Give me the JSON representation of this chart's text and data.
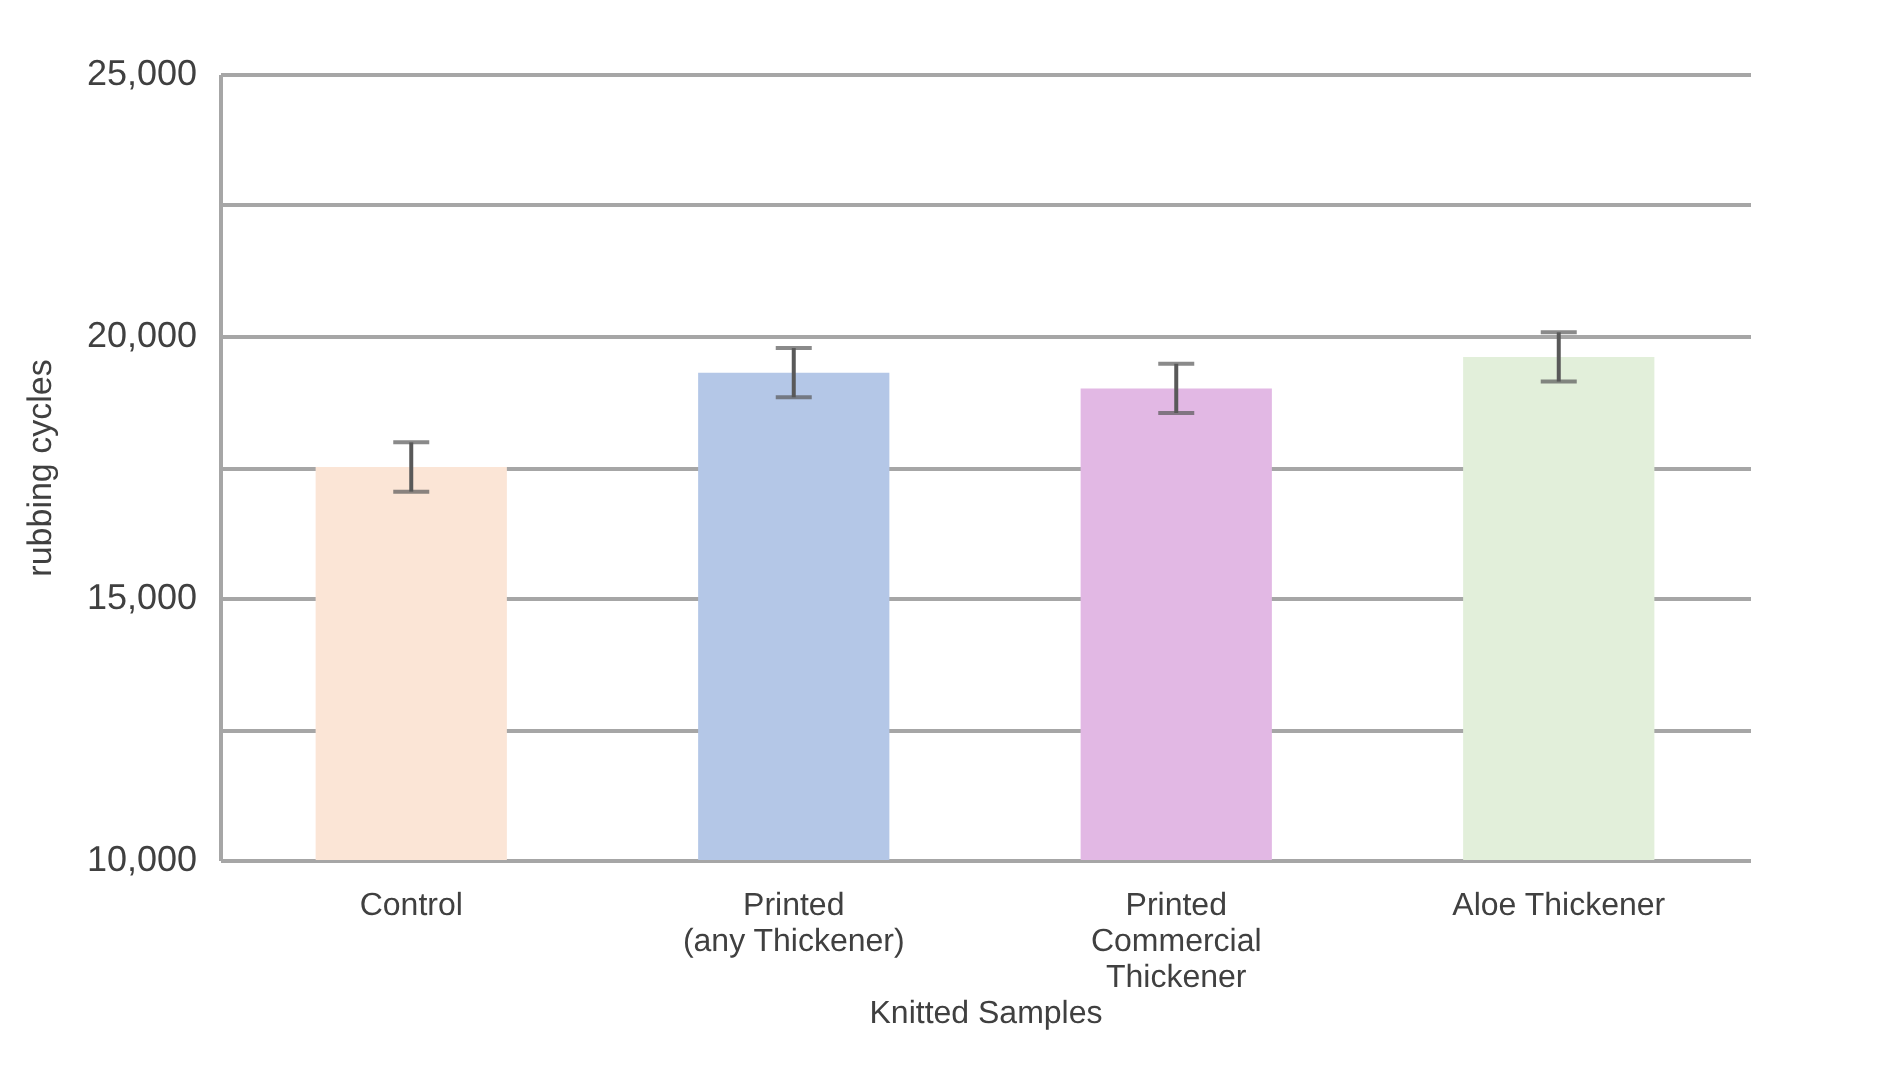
{
  "chart_data": {
    "type": "bar",
    "xlabel": "Knitted Samples",
    "ylabel": "rubbing cycles",
    "categories": [
      "Control",
      "Printed (any Thickener)",
      "Printed Commercial Thickener",
      "Aloe Thickener"
    ],
    "values": [
      17500,
      19300,
      19000,
      19600
    ],
    "colors": [
      "#fbe5d6",
      "#b4c7e7",
      "#e2b8e4",
      "#e2efda"
    ],
    "errors": [
      470,
      470,
      470,
      470
    ],
    "ylim": [
      10000,
      25000
    ],
    "yticks": [
      {
        "value": 10000,
        "label": "10,000"
      },
      {
        "value": 12500,
        "label": null
      },
      {
        "value": 15000,
        "label": "15,000"
      },
      {
        "value": 17500,
        "label": null
      },
      {
        "value": 20000,
        "label": "20,000"
      },
      {
        "value": 22500,
        "label": null
      },
      {
        "value": 25000,
        "label": "25,000"
      }
    ],
    "grid": "y"
  }
}
